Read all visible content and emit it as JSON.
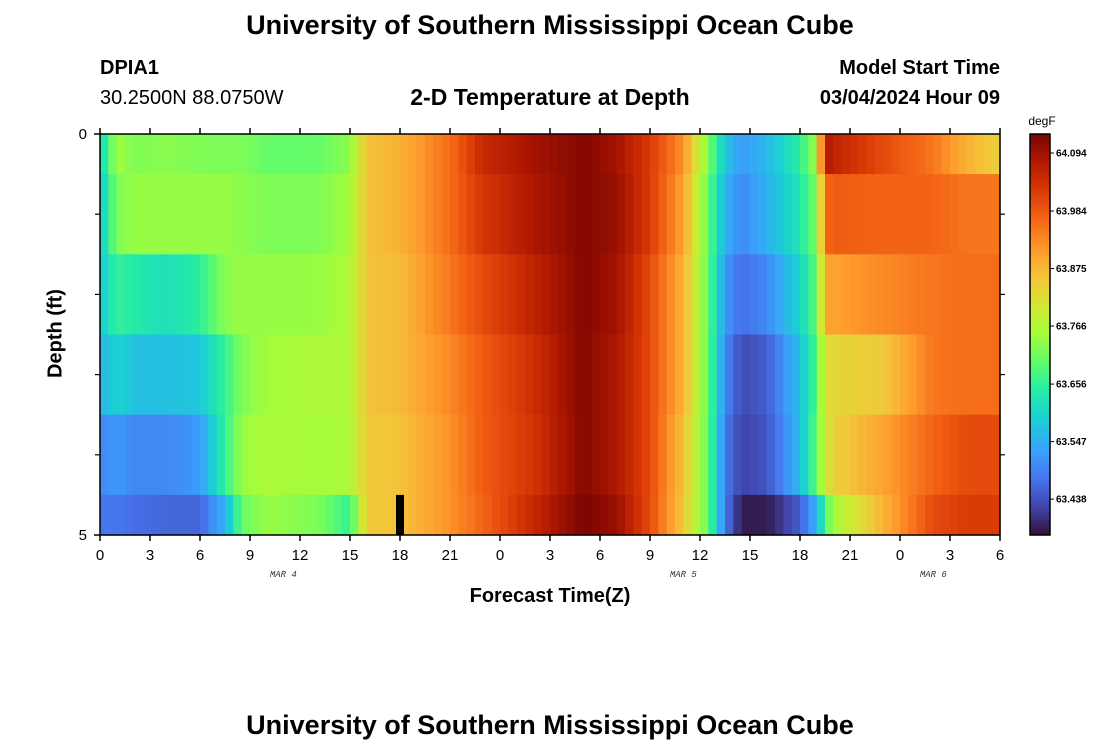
{
  "page": {
    "title": "University of Southern Mississippi Ocean Cube",
    "station_id": "DPIA1",
    "station_location": "30.2500N  88.0750W",
    "plot_title": "2-D Temperature at Depth",
    "model_start_label": "Model Start Time",
    "model_start_value": "03/04/2024 Hour 09",
    "footer_title": "University of Southern Mississippi Ocean Cube"
  },
  "chart_data": {
    "type": "heatmap",
    "title": "2-D Temperature at Depth",
    "xlabel": "Forecast Time(Z)",
    "ylabel": "Depth (ft)",
    "x_range_hours": [
      0,
      54
    ],
    "y_range": [
      0,
      5
    ],
    "y_ticks": [
      "0",
      "5"
    ],
    "y_tick_values": [
      0,
      5
    ],
    "x_tick_labels": [
      "0",
      "3",
      "6",
      "9",
      "12",
      "15",
      "18",
      "21",
      "0",
      "3",
      "6",
      "9",
      "12",
      "15",
      "18",
      "21",
      "0",
      "3",
      "6"
    ],
    "date_labels": [
      {
        "label": "MAR 4",
        "hour": 11
      },
      {
        "label": "MAR 5",
        "hour": 35
      },
      {
        "label": "MAR 6",
        "hour": 50
      }
    ],
    "depth_rows": [
      0.25,
      1.25,
      2.25,
      3.25,
      4.25,
      4.75
    ],
    "depth_row_edges": [
      0,
      0.5,
      1.5,
      2.5,
      3.5,
      4.5,
      5
    ],
    "colorbar": {
      "unit": "degF",
      "min": 63.37,
      "max": 64.13,
      "tick_labels": [
        "64.094",
        "63.984",
        "63.875",
        "63.766",
        "63.656",
        "63.547",
        "63.438"
      ],
      "tick_values": [
        64.094,
        63.984,
        63.875,
        63.766,
        63.656,
        63.547,
        63.438
      ]
    },
    "profile_keys_hours": [
      0,
      1,
      2,
      4,
      6,
      7.5,
      8.5,
      10,
      13,
      15,
      16,
      18,
      21,
      23,
      26,
      29,
      31,
      33,
      35,
      36.5,
      37.5,
      38.5,
      40,
      42,
      43,
      43.5,
      44,
      47,
      50,
      52,
      54
    ],
    "profile_keys_values": [
      [
        63.6,
        63.75,
        63.72,
        63.73,
        63.72,
        63.72,
        63.72,
        63.7,
        63.7,
        63.73,
        63.86,
        63.88,
        63.96,
        64.05,
        64.09,
        64.12,
        64.09,
        64.02,
        63.92,
        63.72,
        63.58,
        63.52,
        63.56,
        63.65,
        63.75,
        64.08,
        64.06,
        64.0,
        63.95,
        63.88,
        63.84
      ],
      [
        63.58,
        63.72,
        63.74,
        63.74,
        63.74,
        63.74,
        63.73,
        63.72,
        63.72,
        63.75,
        63.86,
        63.88,
        63.96,
        64.03,
        64.08,
        64.12,
        64.1,
        64.02,
        63.9,
        63.7,
        63.55,
        63.5,
        63.55,
        63.63,
        63.72,
        63.96,
        63.98,
        63.97,
        63.97,
        63.95,
        63.95
      ],
      [
        63.58,
        63.66,
        63.64,
        63.62,
        63.65,
        63.73,
        63.74,
        63.74,
        63.74,
        63.76,
        63.86,
        63.87,
        63.95,
        64.0,
        64.06,
        64.12,
        64.09,
        64.0,
        63.88,
        63.7,
        63.52,
        63.47,
        63.5,
        63.6,
        63.7,
        63.9,
        63.9,
        63.93,
        63.95,
        63.96,
        63.96
      ],
      [
        63.55,
        63.6,
        63.57,
        63.57,
        63.58,
        63.66,
        63.72,
        63.75,
        63.76,
        63.76,
        63.86,
        63.87,
        63.93,
        63.98,
        64.04,
        64.12,
        64.08,
        64.0,
        63.88,
        63.7,
        63.5,
        63.43,
        63.45,
        63.57,
        63.68,
        63.82,
        63.83,
        63.85,
        63.95,
        63.96,
        63.96
      ],
      [
        63.5,
        63.52,
        63.5,
        63.5,
        63.52,
        63.66,
        63.74,
        63.76,
        63.75,
        63.76,
        63.85,
        63.86,
        63.92,
        63.98,
        64.03,
        64.12,
        64.08,
        64.0,
        63.86,
        63.7,
        63.48,
        63.42,
        63.44,
        63.56,
        63.7,
        63.8,
        63.84,
        63.9,
        63.97,
        64.0,
        64.0
      ],
      [
        63.48,
        63.48,
        63.47,
        63.46,
        63.46,
        63.55,
        63.7,
        63.74,
        63.72,
        63.66,
        63.85,
        63.86,
        63.92,
        63.97,
        64.05,
        64.13,
        64.1,
        64.0,
        63.85,
        63.7,
        63.48,
        63.38,
        63.38,
        63.45,
        63.55,
        63.68,
        63.75,
        63.88,
        64.0,
        64.02,
        64.02
      ]
    ],
    "missing_marker": {
      "hour": 18,
      "depth_from": 4.5,
      "depth_to": 5
    }
  }
}
